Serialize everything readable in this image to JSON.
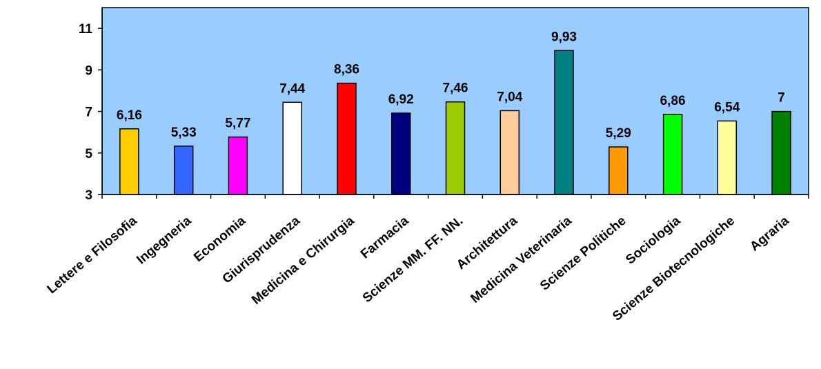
{
  "chart_data": {
    "type": "bar",
    "title": "",
    "xlabel": "",
    "ylabel": "",
    "ylim": [
      3,
      12
    ],
    "yticks": [
      3,
      5,
      7,
      9,
      11
    ],
    "grid": false,
    "plot_background": "#99ccff",
    "categories": [
      "Lettere e Filosofia",
      "Ingegneria",
      "Economia",
      "Giurisprudenza",
      "Medicina e Chirurgia",
      "Farmacia",
      "Scienze MM. FF. NN.",
      "Architettura",
      "Medicina Veterinaria",
      "Scienze Politiche",
      "Sociologia",
      "Scienze Biotecnologiche",
      "Agraria"
    ],
    "values": [
      6.16,
      5.33,
      5.77,
      7.44,
      8.36,
      6.92,
      7.46,
      7.04,
      9.93,
      5.29,
      6.86,
      6.54,
      7
    ],
    "value_labels": [
      "6,16",
      "5,33",
      "5,77",
      "7,44",
      "8,36",
      "6,92",
      "7,46",
      "7,04",
      "9,93",
      "5,29",
      "6,86",
      "6,54",
      "7"
    ],
    "colors": [
      "#ffcc00",
      "#3366ff",
      "#ff00ff",
      "#ffffff",
      "#ff0000",
      "#000080",
      "#99cc00",
      "#ffcc99",
      "#008080",
      "#ff9900",
      "#00ff00",
      "#ffff99",
      "#008000"
    ]
  }
}
